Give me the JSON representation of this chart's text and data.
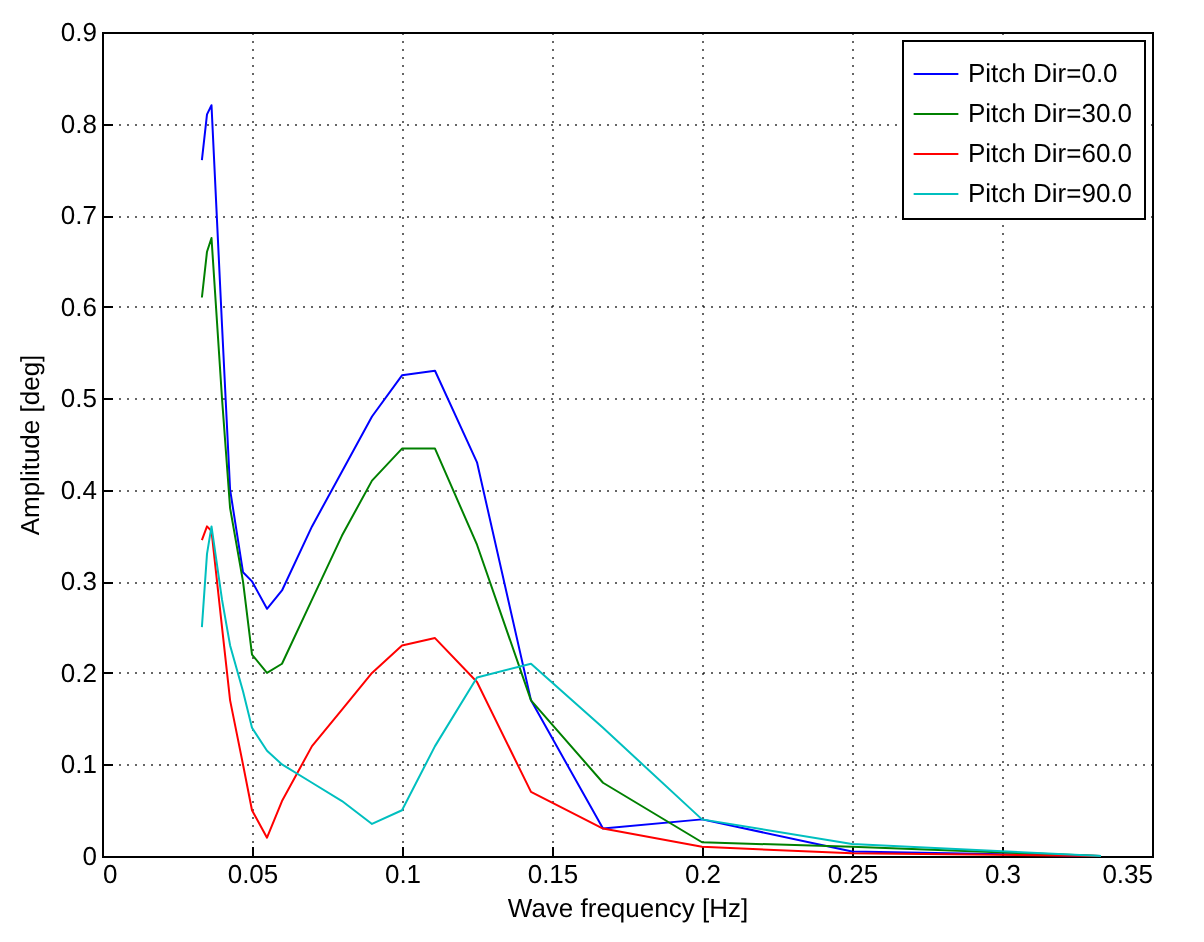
{
  "chart_data": {
    "type": "line",
    "xlabel": "Wave frequency [Hz]",
    "ylabel": "Amplitude [deg]",
    "x": [
      0.0333,
      0.035,
      0.0365,
      0.04,
      0.0427,
      0.047,
      0.05,
      0.055,
      0.06,
      0.07,
      0.08,
      0.09,
      0.1,
      0.111,
      0.125,
      0.143,
      0.167,
      0.2,
      0.25,
      0.333
    ],
    "series": [
      {
        "name": "Pitch Dir=0.0",
        "color": "#0000ff",
        "values": [
          0.76,
          0.81,
          0.82,
          0.58,
          0.4,
          0.31,
          0.3,
          0.27,
          0.29,
          0.36,
          0.42,
          0.48,
          0.525,
          0.53,
          0.43,
          0.17,
          0.03,
          0.04,
          0.005,
          0
        ]
      },
      {
        "name": "Pitch Dir=30.0",
        "color": "#008000",
        "values": [
          0.61,
          0.66,
          0.675,
          0.5,
          0.38,
          0.3,
          0.22,
          0.2,
          0.21,
          0.28,
          0.35,
          0.41,
          0.445,
          0.445,
          0.34,
          0.17,
          0.08,
          0.015,
          0.01,
          0
        ]
      },
      {
        "name": "Pitch Dir=60.0",
        "color": "#ff0000",
        "values": [
          0.345,
          0.36,
          0.355,
          0.25,
          0.17,
          0.1,
          0.05,
          0.02,
          0.06,
          0.12,
          0.16,
          0.2,
          0.23,
          0.238,
          0.19,
          0.07,
          0.03,
          0.01,
          0.003,
          0
        ]
      },
      {
        "name": "Pitch Dir=90.0",
        "color": "#00bfbf",
        "values": [
          0.25,
          0.33,
          0.36,
          0.28,
          0.23,
          0.18,
          0.14,
          0.115,
          0.1,
          0.08,
          0.06,
          0.035,
          0.05,
          0.12,
          0.195,
          0.21,
          0.14,
          0.04,
          0.013,
          0
        ]
      }
    ],
    "xlim": [
      0,
      0.35
    ],
    "xticks": [
      0,
      0.05,
      0.1,
      0.15,
      0.2,
      0.25,
      0.3,
      0.35
    ],
    "ylim": [
      0,
      0.9
    ],
    "yticks": [
      0,
      0.1,
      0.2,
      0.3,
      0.4,
      0.5,
      0.6,
      0.7,
      0.8,
      0.9
    ],
    "grid": true,
    "legend": "top right",
    "marker": "none",
    "line_style": "solid"
  }
}
